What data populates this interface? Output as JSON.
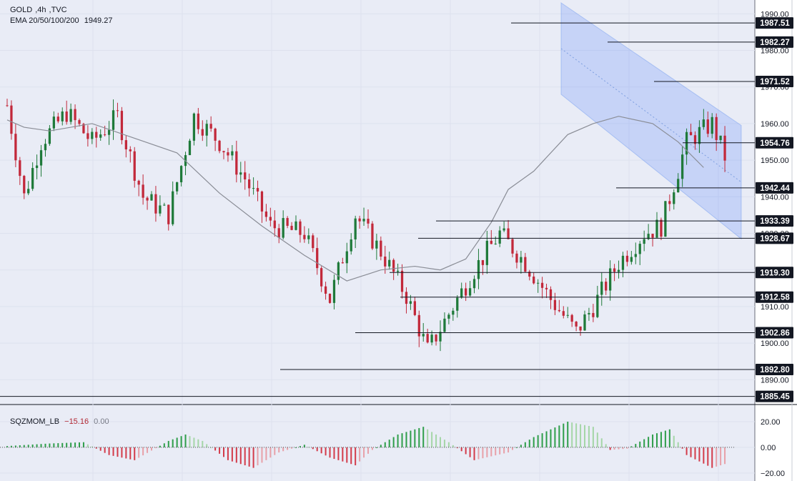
{
  "chart_data": [
    {
      "type": "candlestick",
      "symbol": "GOLD",
      "timeframe": "4h",
      "source": "TVC",
      "indicator_label": "EMA 20/50/100/200",
      "indicator_value": "1949.27",
      "price_axis_ticks": [
        "1990.00",
        "1980.00",
        "1970.00",
        "1960.00",
        "1950.00",
        "1940.00",
        "1930.00",
        "1920.00",
        "1910.00",
        "1900.00",
        "1890.00"
      ],
      "ylim": [
        1884,
        1993
      ],
      "level_labels": [
        "1987.51",
        "1982.27",
        "1971.52",
        "1954.76",
        "1942.44",
        "1933.39",
        "1928.67",
        "1919.30",
        "1912.58",
        "1902.86",
        "1892.80",
        "1885.45"
      ],
      "levels": [
        1987.51,
        1982.27,
        1971.52,
        1954.76,
        1942.44,
        1933.39,
        1928.67,
        1919.3,
        1912.58,
        1902.86,
        1892.8,
        1885.45
      ],
      "ema_points": [
        [
          0,
          1961
        ],
        [
          4,
          1959
        ],
        [
          10,
          1958
        ],
        [
          20,
          1960
        ],
        [
          30,
          1956
        ],
        [
          40,
          1952
        ],
        [
          50,
          1941
        ],
        [
          60,
          1932
        ],
        [
          70,
          1924
        ],
        [
          80,
          1917
        ],
        [
          88,
          1920
        ],
        [
          96,
          1921
        ],
        [
          102,
          1920
        ],
        [
          108,
          1923
        ],
        [
          114,
          1933
        ],
        [
          118,
          1942
        ],
        [
          124,
          1947
        ],
        [
          132,
          1957
        ],
        [
          138,
          1960
        ],
        [
          144,
          1962
        ],
        [
          152,
          1960
        ],
        [
          158,
          1955
        ],
        [
          164,
          1948
        ]
      ]
    },
    {
      "type": "histogram",
      "indicator_label": "SQZMOM_LB",
      "value": "−15.16",
      "zero_value": "0.00",
      "axis_ticks": [
        "20.00",
        "0.00",
        "−20.00"
      ],
      "ylim": [
        -24,
        25
      ]
    }
  ]
}
